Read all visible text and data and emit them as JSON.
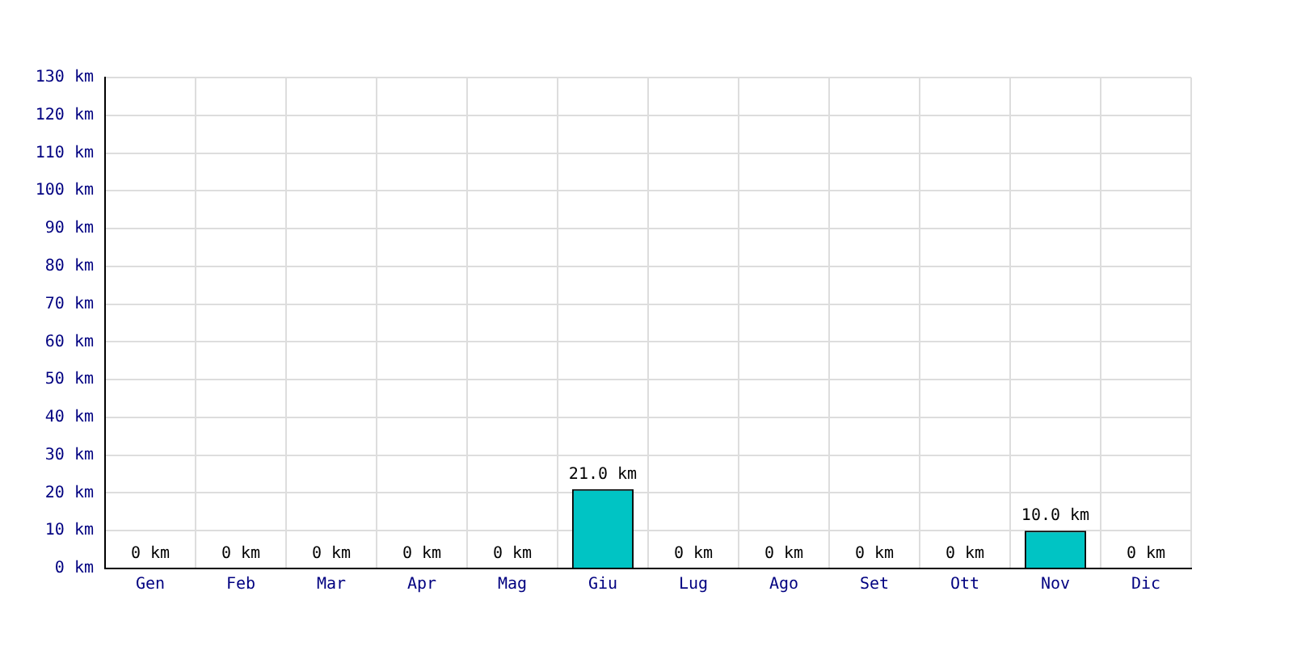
{
  "chart_data": {
    "type": "bar",
    "categories": [
      "Gen",
      "Feb",
      "Mar",
      "Apr",
      "Mag",
      "Giu",
      "Lug",
      "Ago",
      "Set",
      "Ott",
      "Nov",
      "Dic"
    ],
    "values": [
      0,
      0,
      0,
      0,
      0,
      21,
      0,
      0,
      0,
      0,
      10,
      0
    ],
    "value_labels": [
      "0 km",
      "0 km",
      "0 km",
      "0 km",
      "0 km",
      "21.0 km",
      "0 km",
      "0 km",
      "0 km",
      "0 km",
      "10.0 km",
      "0 km"
    ],
    "color": "#00c4c4",
    "ylim": [
      0,
      130
    ],
    "yticks": [
      {
        "value": 0,
        "label": "0 km"
      },
      {
        "value": 10,
        "label": "10 km"
      },
      {
        "value": 20,
        "label": "20 km"
      },
      {
        "value": 30,
        "label": "30 km"
      },
      {
        "value": 40,
        "label": "40 km"
      },
      {
        "value": 50,
        "label": "50 km"
      },
      {
        "value": 60,
        "label": "60 km"
      },
      {
        "value": 70,
        "label": "70 km"
      },
      {
        "value": 80,
        "label": "80 km"
      },
      {
        "value": 90,
        "label": "90 km"
      },
      {
        "value": 100,
        "label": "100 km"
      },
      {
        "value": 110,
        "label": "110 km"
      },
      {
        "value": 120,
        "label": "120 km"
      },
      {
        "value": 130,
        "label": "130 km"
      }
    ],
    "grid": true,
    "legend": false
  }
}
